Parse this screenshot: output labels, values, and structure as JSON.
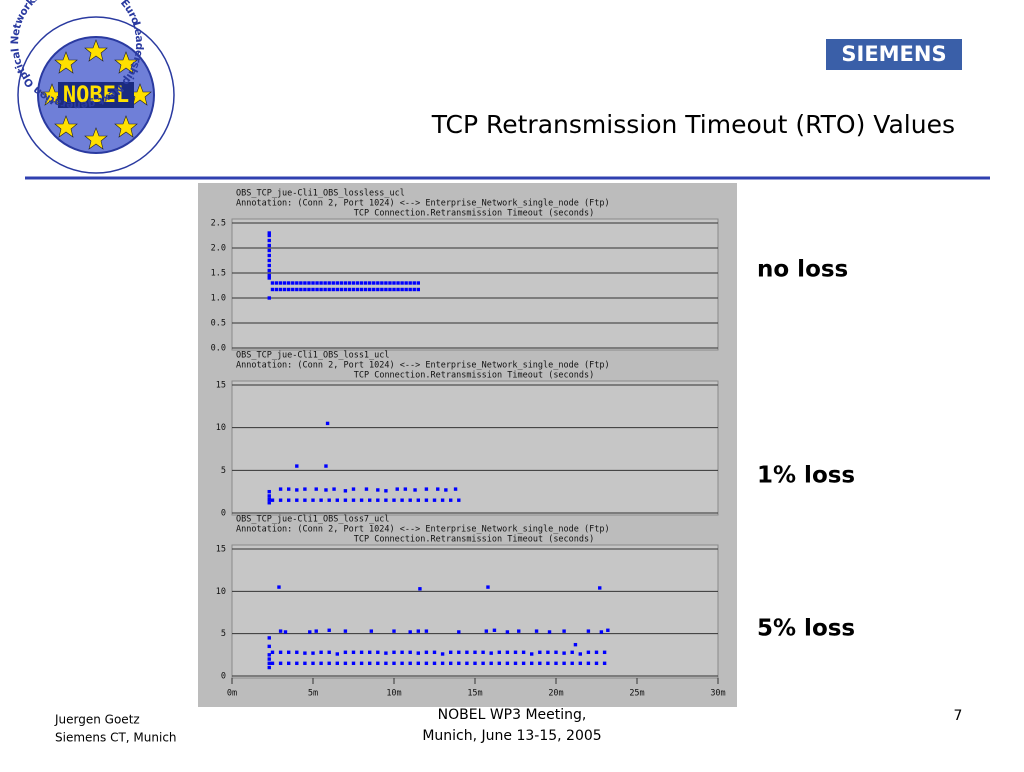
{
  "slide": {
    "logo": {
      "ring_text": "Leadership Next generation Optical Networks for Broadband European",
      "name": "NOBEL"
    },
    "brand": "SIEMENS",
    "title": "TCP Retransmission Timeout (RTO) Values",
    "footer_left": [
      "Juergen Goetz",
      "Siemens CT, Munich"
    ],
    "footer_center": [
      "NOBEL WP3 Meeting,",
      "Munich, June 13-15, 2005"
    ],
    "page_number": "7"
  },
  "chart_data": [
    {
      "type": "scatter",
      "title": "OBS_TCP_jue-Cli1_OBS_lossless_ucl",
      "subtitle": "Annotation: (Conn 2, Port 1024) <--> Enterprise_Network_single_node (Ftp)",
      "y_label": "TCP Connection.Retransmission Timeout (seconds)",
      "label": "no loss",
      "xlim": [
        0,
        30
      ],
      "ylim": [
        0,
        2.5
      ],
      "yticks": [
        {
          "value": 0,
          "label": "0.0"
        },
        {
          "value": 0.5,
          "label": "0.5"
        },
        {
          "value": 1,
          "label": "1.0"
        },
        {
          "value": 1.5,
          "label": "1.5"
        },
        {
          "value": 2,
          "label": "2.0"
        },
        {
          "value": 2.5,
          "label": "2.5"
        }
      ],
      "grid": true,
      "series": [
        {
          "color": "#0000ff",
          "x": [
            2.3,
            2.3,
            2.3,
            2.3,
            2.3,
            2.3,
            2.3,
            2.3,
            2.3,
            2.3,
            2.3,
            2.3
          ],
          "values": [
            2.3,
            2.25,
            2.15,
            2.05,
            1.95,
            1.85,
            1.75,
            1.65,
            1.55,
            1.45,
            1.4,
            1.0
          ]
        },
        {
          "color": "#0000ff",
          "x": [
            2.5,
            2.75,
            3,
            3.25,
            3.5,
            3.75,
            4,
            4.25,
            4.5,
            4.75,
            5,
            5.25,
            5.5,
            5.75,
            6,
            6.25,
            6.5,
            6.75,
            7,
            7.25,
            7.5,
            7.75,
            8,
            8.25,
            8.5,
            8.75,
            9,
            9.25,
            9.5,
            9.75,
            10,
            10.25,
            10.5,
            10.75,
            11,
            11.25,
            11.5
          ],
          "values": [
            1.3,
            1.3,
            1.3,
            1.3,
            1.3,
            1.3,
            1.3,
            1.3,
            1.3,
            1.3,
            1.3,
            1.3,
            1.3,
            1.3,
            1.3,
            1.3,
            1.3,
            1.3,
            1.3,
            1.3,
            1.3,
            1.3,
            1.3,
            1.3,
            1.3,
            1.3,
            1.3,
            1.3,
            1.3,
            1.3,
            1.3,
            1.3,
            1.3,
            1.3,
            1.3,
            1.3,
            1.3
          ]
        },
        {
          "color": "#0000ff",
          "x": [
            2.5,
            2.75,
            3,
            3.25,
            3.5,
            3.75,
            4,
            4.25,
            4.5,
            4.75,
            5,
            5.25,
            5.5,
            5.75,
            6,
            6.25,
            6.5,
            6.75,
            7,
            7.25,
            7.5,
            7.75,
            8,
            8.25,
            8.5,
            8.75,
            9,
            9.25,
            9.5,
            9.75,
            10,
            10.25,
            10.5,
            10.75,
            11,
            11.25,
            11.5
          ],
          "values": [
            1.17,
            1.17,
            1.17,
            1.17,
            1.17,
            1.17,
            1.17,
            1.17,
            1.17,
            1.17,
            1.17,
            1.17,
            1.17,
            1.17,
            1.17,
            1.17,
            1.17,
            1.17,
            1.17,
            1.17,
            1.17,
            1.17,
            1.17,
            1.17,
            1.17,
            1.17,
            1.17,
            1.17,
            1.17,
            1.17,
            1.17,
            1.17,
            1.17,
            1.17,
            1.17,
            1.17,
            1.17
          ]
        }
      ]
    },
    {
      "type": "scatter",
      "title": "OBS_TCP_jue-Cli1_OBS_loss1_ucl",
      "subtitle": "Annotation: (Conn 2, Port 1024) <--> Enterprise_Network_single_node (Ftp)",
      "y_label": "TCP Connection.Retransmission Timeout (seconds)",
      "label": "1% loss",
      "xlim": [
        0,
        30
      ],
      "ylim": [
        0,
        15
      ],
      "yticks": [
        0,
        5,
        10,
        15
      ],
      "grid": true,
      "series": [
        {
          "color": "#0000ff",
          "x": [
            2.3,
            2.3,
            2.3,
            2.3,
            4,
            5.8,
            5.9
          ],
          "values": [
            2.5,
            2.0,
            1.6,
            1.2,
            5.5,
            5.5,
            10.5
          ]
        },
        {
          "color": "#0000ff",
          "x": [
            2.5,
            3,
            3.5,
            4,
            4.5,
            5,
            5.5,
            6,
            6.5,
            7,
            7.5,
            8,
            8.5,
            9,
            9.5,
            10,
            10.5,
            11,
            11.5,
            12,
            12.5,
            13,
            13.5,
            14
          ],
          "values": [
            1.5,
            1.5,
            1.5,
            1.5,
            1.5,
            1.5,
            1.5,
            1.5,
            1.5,
            1.5,
            1.5,
            1.5,
            1.5,
            1.5,
            1.5,
            1.5,
            1.5,
            1.5,
            1.5,
            1.5,
            1.5,
            1.5,
            1.5,
            1.5
          ]
        },
        {
          "color": "#0000ff",
          "x": [
            3,
            3.5,
            4,
            4.5,
            5.2,
            5.8,
            6.3,
            7,
            7.5,
            8.3,
            9,
            9.5,
            10.2,
            10.7,
            11.3,
            12,
            12.7,
            13.2,
            13.8
          ],
          "values": [
            2.8,
            2.8,
            2.7,
            2.8,
            2.8,
            2.7,
            2.8,
            2.6,
            2.8,
            2.8,
            2.7,
            2.6,
            2.8,
            2.8,
            2.7,
            2.8,
            2.8,
            2.7,
            2.8
          ]
        }
      ]
    },
    {
      "type": "scatter",
      "title": "OBS_TCP_jue-Cli1_OBS_loss7_ucl",
      "subtitle": "Annotation: (Conn 2, Port 1024) <--> Enterprise_Network_single_node (Ftp)",
      "y_label": "TCP Connection.Retransmission Timeout (seconds)",
      "label": "5% loss",
      "xlim": [
        0,
        30
      ],
      "ylim": [
        0,
        15
      ],
      "yticks": [
        0,
        5,
        10,
        15
      ],
      "xticks": [
        {
          "value": 0,
          "label": "0m"
        },
        {
          "value": 5,
          "label": "5m"
        },
        {
          "value": 10,
          "label": "10m"
        },
        {
          "value": 15,
          "label": "15m"
        },
        {
          "value": 20,
          "label": "20m"
        },
        {
          "value": 25,
          "label": "25m"
        },
        {
          "value": 30,
          "label": "30m"
        }
      ],
      "grid": true,
      "series": [
        {
          "color": "#0000ff",
          "x": [
            2.3,
            2.3,
            2.3,
            2.3,
            2.3,
            2.3,
            2.9,
            11.6,
            15.8,
            22.7,
            21.2
          ],
          "values": [
            4.5,
            3.5,
            2.5,
            2.0,
            1.5,
            1.0,
            10.5,
            10.3,
            10.5,
            10.4,
            3.7
          ]
        },
        {
          "color": "#0000ff",
          "x": [
            2.5,
            3,
            3.5,
            4,
            4.5,
            5,
            5.5,
            6,
            6.5,
            7,
            7.5,
            8,
            8.5,
            9,
            9.5,
            10,
            10.5,
            11,
            11.5,
            12,
            12.5,
            13,
            13.5,
            14,
            14.5,
            15,
            15.5,
            16,
            16.5,
            17,
            17.5,
            18,
            18.5,
            19,
            19.5,
            20,
            20.5,
            21,
            21.5,
            22,
            22.5,
            23
          ],
          "values": [
            1.5,
            1.5,
            1.5,
            1.5,
            1.5,
            1.5,
            1.5,
            1.5,
            1.5,
            1.5,
            1.5,
            1.5,
            1.5,
            1.5,
            1.5,
            1.5,
            1.5,
            1.5,
            1.5,
            1.5,
            1.5,
            1.5,
            1.5,
            1.5,
            1.5,
            1.5,
            1.5,
            1.5,
            1.5,
            1.5,
            1.5,
            1.5,
            1.5,
            1.5,
            1.5,
            1.5,
            1.5,
            1.5,
            1.5,
            1.5,
            1.5,
            1.5
          ]
        },
        {
          "color": "#0000ff",
          "x": [
            2.5,
            3,
            3.5,
            4,
            4.5,
            5,
            5.5,
            6,
            6.5,
            7,
            7.5,
            8,
            8.5,
            9,
            9.5,
            10,
            10.5,
            11,
            11.5,
            12,
            12.5,
            13,
            13.5,
            14,
            14.5,
            15,
            15.5,
            16,
            16.5,
            17,
            17.5,
            18,
            18.5,
            19,
            19.5,
            20,
            20.5,
            21,
            21.5,
            22,
            22.5,
            23
          ],
          "values": [
            2.8,
            2.8,
            2.8,
            2.8,
            2.7,
            2.7,
            2.8,
            2.8,
            2.6,
            2.8,
            2.8,
            2.8,
            2.8,
            2.8,
            2.7,
            2.8,
            2.8,
            2.8,
            2.7,
            2.8,
            2.8,
            2.6,
            2.8,
            2.8,
            2.8,
            2.8,
            2.8,
            2.7,
            2.8,
            2.8,
            2.8,
            2.8,
            2.6,
            2.8,
            2.8,
            2.8,
            2.7,
            2.8,
            2.6,
            2.8,
            2.8,
            2.8
          ]
        },
        {
          "color": "#0000ff",
          "x": [
            3,
            3.3,
            4.8,
            5.2,
            6,
            7,
            8.6,
            10,
            11,
            11.5,
            12,
            14,
            15.7,
            16.2,
            17,
            17.7,
            18.8,
            19.6,
            20.5,
            22,
            22.8,
            23.2
          ],
          "values": [
            5.3,
            5.2,
            5.2,
            5.3,
            5.4,
            5.3,
            5.3,
            5.3,
            5.2,
            5.3,
            5.3,
            5.2,
            5.3,
            5.4,
            5.2,
            5.3,
            5.3,
            5.2,
            5.3,
            5.3,
            5.2,
            5.4
          ]
        }
      ]
    }
  ]
}
